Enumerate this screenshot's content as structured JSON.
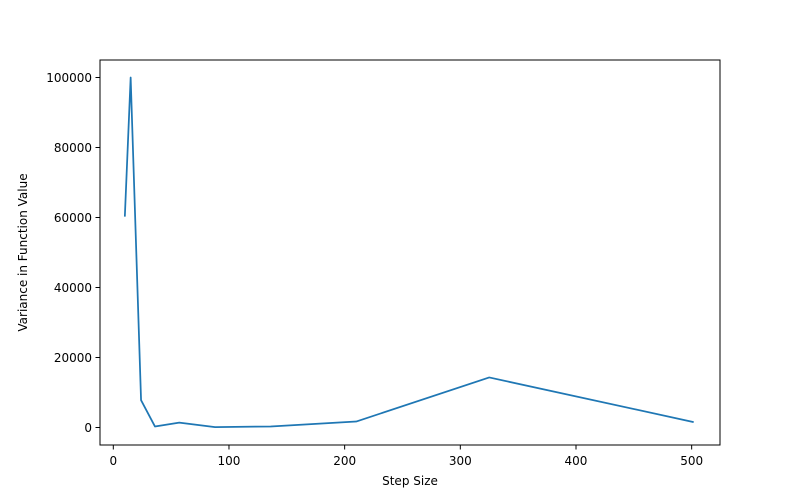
{
  "chart_data": {
    "type": "line",
    "title": "",
    "xlabel": "Step Size",
    "ylabel": "Variance in Function Value",
    "xlim": [
      -11.5,
      524.5
    ],
    "ylim": [
      -5000,
      105000
    ],
    "xticks": [
      0,
      100,
      200,
      300,
      400,
      500
    ],
    "yticks": [
      0,
      20000,
      40000,
      60000,
      80000,
      100000
    ],
    "xtick_labels": [
      "0",
      "100",
      "200",
      "300",
      "400",
      "500"
    ],
    "ytick_labels": [
      "0",
      "20000",
      "40000",
      "60000",
      "80000",
      "100000"
    ],
    "grid": false,
    "legend": "none",
    "series": [
      {
        "color": "#1f77b4",
        "x": [
          10,
          15,
          24,
          36,
          57,
          88,
          136,
          210,
          325,
          501
        ],
        "y": [
          60500,
          100000,
          7800,
          300,
          1400,
          100,
          300,
          1700,
          14300,
          1600
        ]
      }
    ]
  }
}
